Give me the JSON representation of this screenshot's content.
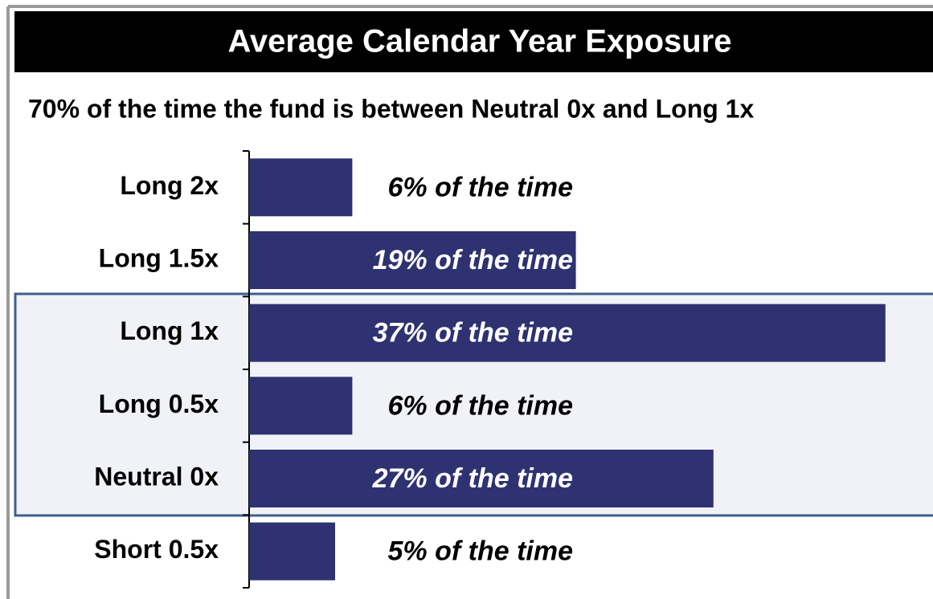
{
  "chart_data": {
    "type": "barh",
    "title": "Average Calendar Year Exposure",
    "subtitle": "70% of the time the fund is between Neutral 0x and Long 1x",
    "categories": [
      "Long 2x",
      "Long 1.5x",
      "Long 1x",
      "Long 0.5x",
      "Neutral 0x",
      "Short 0.5x"
    ],
    "values": [
      6,
      19,
      37,
      6,
      27,
      5
    ],
    "value_labels": [
      "6% of the time",
      "19% of the time",
      "37% of the time",
      "6% of the time",
      "27% of the time",
      "5% of the time"
    ],
    "color": "#2e3271"
  }
}
